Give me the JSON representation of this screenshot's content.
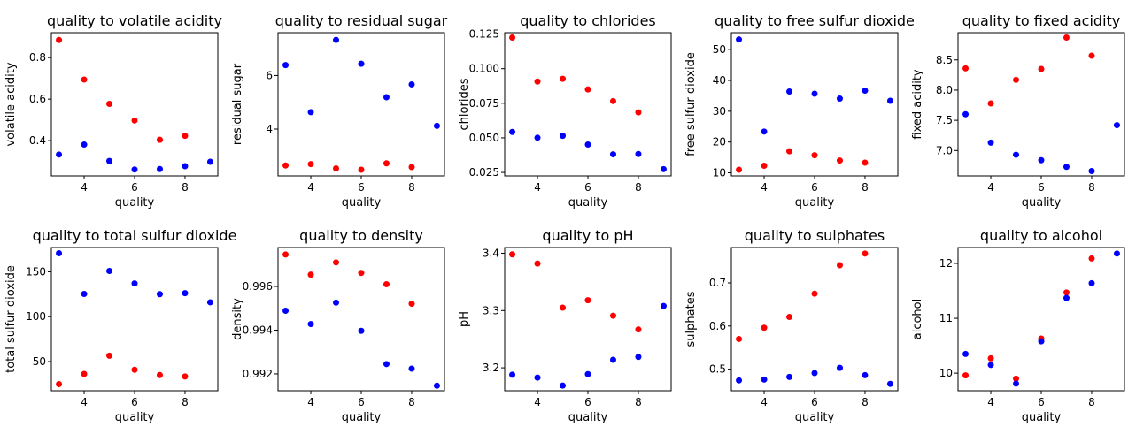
{
  "colors": {
    "red_series": "#ff0000",
    "blue_series": "#0000ff"
  },
  "chart_data": [
    {
      "type": "scatter",
      "title": "quality to volatile acidity",
      "xlabel": "quality",
      "ylabel": "volatile acidity",
      "xlim": [
        2.7,
        9.3
      ],
      "ylim": [
        0.23,
        0.92
      ],
      "xticks": [
        4,
        6,
        8
      ],
      "xtick_labels": [
        "4",
        "6",
        "8"
      ],
      "yticks": [
        0.4,
        0.6,
        0.8
      ],
      "ytick_labels": [
        "0.4",
        "0.6",
        "0.8"
      ],
      "series": [
        {
          "color": "#ff0000",
          "x": [
            3,
            4,
            5,
            6,
            7,
            8
          ],
          "y": [
            0.885,
            0.694,
            0.577,
            0.497,
            0.404,
            0.423
          ]
        },
        {
          "color": "#0000ff",
          "x": [
            3,
            4,
            5,
            6,
            7,
            8,
            9
          ],
          "y": [
            0.333,
            0.381,
            0.302,
            0.261,
            0.263,
            0.277,
            0.298
          ]
        }
      ]
    },
    {
      "type": "scatter",
      "title": "quality to residual sugar",
      "xlabel": "quality",
      "ylabel": "residual sugar",
      "xlim": [
        2.7,
        9.3
      ],
      "ylim": [
        2.25,
        7.6
      ],
      "xticks": [
        4,
        6,
        8
      ],
      "xtick_labels": [
        "4",
        "6",
        "8"
      ],
      "yticks": [
        4,
        6
      ],
      "ytick_labels": [
        "4",
        "6"
      ],
      "series": [
        {
          "color": "#ff0000",
          "x": [
            3,
            4,
            5,
            6,
            7,
            8
          ],
          "y": [
            2.64,
            2.69,
            2.53,
            2.48,
            2.72,
            2.58
          ]
        },
        {
          "color": "#0000ff",
          "x": [
            3,
            4,
            5,
            6,
            7,
            8,
            9
          ],
          "y": [
            6.39,
            4.63,
            7.33,
            6.44,
            5.19,
            5.67,
            4.12
          ]
        }
      ]
    },
    {
      "type": "scatter",
      "title": "quality to chlorides",
      "xlabel": "quality",
      "ylabel": "chlorides",
      "xlim": [
        2.7,
        9.3
      ],
      "ylim": [
        0.0225,
        0.126
      ],
      "xticks": [
        4,
        6,
        8
      ],
      "xtick_labels": [
        "4",
        "6",
        "8"
      ],
      "yticks": [
        0.025,
        0.05,
        0.075,
        0.1,
        0.125
      ],
      "ytick_labels": [
        "0.025",
        "0.050",
        "0.075",
        "0.100",
        "0.125"
      ],
      "series": [
        {
          "color": "#ff0000",
          "x": [
            3,
            4,
            5,
            6,
            7,
            8
          ],
          "y": [
            0.1225,
            0.0907,
            0.0927,
            0.085,
            0.0766,
            0.0684
          ]
        },
        {
          "color": "#0000ff",
          "x": [
            3,
            4,
            5,
            6,
            7,
            8,
            9
          ],
          "y": [
            0.0543,
            0.0501,
            0.0515,
            0.0452,
            0.0381,
            0.0383,
            0.0274
          ]
        }
      ]
    },
    {
      "type": "scatter",
      "title": "quality to free sulfur dioxide",
      "xlabel": "quality",
      "ylabel": "free sulfur dioxide",
      "xlim": [
        2.7,
        9.3
      ],
      "ylim": [
        9.0,
        55.5
      ],
      "xticks": [
        4,
        6,
        8
      ],
      "xtick_labels": [
        "4",
        "6",
        "8"
      ],
      "yticks": [
        10,
        20,
        30,
        40,
        50
      ],
      "ytick_labels": [
        "10",
        "20",
        "30",
        "40",
        "50"
      ],
      "series": [
        {
          "color": "#ff0000",
          "x": [
            3,
            4,
            5,
            6,
            7,
            8
          ],
          "y": [
            11.0,
            12.3,
            17.0,
            15.7,
            14.0,
            13.3
          ]
        },
        {
          "color": "#0000ff",
          "x": [
            3,
            4,
            5,
            6,
            7,
            8,
            9
          ],
          "y": [
            53.3,
            23.4,
            36.4,
            35.7,
            34.1,
            36.7,
            33.4
          ]
        }
      ]
    },
    {
      "type": "scatter",
      "title": "quality to fixed acidity",
      "xlabel": "quality",
      "ylabel": "fixed acidity",
      "xlim": [
        2.7,
        9.3
      ],
      "ylim": [
        6.58,
        8.95
      ],
      "xticks": [
        4,
        6,
        8
      ],
      "xtick_labels": [
        "4",
        "6",
        "8"
      ],
      "yticks": [
        7.0,
        7.5,
        8.0,
        8.5
      ],
      "ytick_labels": [
        "7.0",
        "7.5",
        "8.0",
        "8.5"
      ],
      "series": [
        {
          "color": "#ff0000",
          "x": [
            3,
            4,
            5,
            6,
            7,
            8
          ],
          "y": [
            8.36,
            7.78,
            8.17,
            8.35,
            8.87,
            8.57
          ]
        },
        {
          "color": "#0000ff",
          "x": [
            3,
            4,
            5,
            6,
            7,
            8,
            9
          ],
          "y": [
            7.6,
            7.13,
            6.93,
            6.84,
            6.73,
            6.66,
            7.42
          ]
        }
      ]
    },
    {
      "type": "scatter",
      "title": "quality to total sulfur dioxide",
      "xlabel": "quality",
      "ylabel": "total sulfur dioxide",
      "xlim": [
        2.7,
        9.3
      ],
      "ylim": [
        17.5,
        177
      ],
      "xticks": [
        4,
        6,
        8
      ],
      "xtick_labels": [
        "4",
        "6",
        "8"
      ],
      "yticks": [
        50,
        100,
        150
      ],
      "ytick_labels": [
        "50",
        "100",
        "150"
      ],
      "series": [
        {
          "color": "#ff0000",
          "x": [
            3,
            4,
            5,
            6,
            7,
            8
          ],
          "y": [
            24.9,
            36.2,
            56.5,
            40.9,
            35.0,
            33.4
          ]
        },
        {
          "color": "#0000ff",
          "x": [
            3,
            4,
            5,
            6,
            7,
            8,
            9
          ],
          "y": [
            170.6,
            125.3,
            150.9,
            137.0,
            125.1,
            126.2,
            116.0
          ]
        }
      ]
    },
    {
      "type": "scatter",
      "title": "quality to density",
      "xlabel": "quality",
      "ylabel": "density",
      "xlim": [
        2.7,
        9.3
      ],
      "ylim": [
        0.99123,
        0.99778
      ],
      "xticks": [
        4,
        6,
        8
      ],
      "xtick_labels": [
        "4",
        "6",
        "8"
      ],
      "yticks": [
        0.992,
        0.994,
        0.996
      ],
      "ytick_labels": [
        "0.992",
        "0.994",
        "0.996"
      ],
      "series": [
        {
          "color": "#ff0000",
          "x": [
            3,
            4,
            5,
            6,
            7,
            8
          ],
          "y": [
            0.99746,
            0.99654,
            0.9971,
            0.99662,
            0.9961,
            0.99521
          ]
        },
        {
          "color": "#0000ff",
          "x": [
            3,
            4,
            5,
            6,
            7,
            8,
            9
          ],
          "y": [
            0.99489,
            0.99428,
            0.99526,
            0.99397,
            0.99245,
            0.99224,
            0.99146
          ]
        }
      ]
    },
    {
      "type": "scatter",
      "title": "quality to pH",
      "xlabel": "quality",
      "ylabel": "pH",
      "xlim": [
        2.7,
        9.3
      ],
      "ylim": [
        3.16,
        3.41
      ],
      "xticks": [
        4,
        6,
        8
      ],
      "xtick_labels": [
        "4",
        "6",
        "8"
      ],
      "yticks": [
        3.2,
        3.3,
        3.4
      ],
      "ytick_labels": [
        "3.2",
        "3.3",
        "3.4"
      ],
      "series": [
        {
          "color": "#ff0000",
          "x": [
            3,
            4,
            5,
            6,
            7,
            8
          ],
          "y": [
            3.398,
            3.382,
            3.305,
            3.318,
            3.291,
            3.267
          ]
        },
        {
          "color": "#0000ff",
          "x": [
            3,
            4,
            5,
            6,
            7,
            8,
            9
          ],
          "y": [
            3.188,
            3.183,
            3.169,
            3.189,
            3.214,
            3.219,
            3.308
          ]
        }
      ]
    },
    {
      "type": "scatter",
      "title": "quality to sulphates",
      "xlabel": "quality",
      "ylabel": "sulphates",
      "xlim": [
        2.7,
        9.3
      ],
      "ylim": [
        0.45,
        0.782
      ],
      "xticks": [
        4,
        6,
        8
      ],
      "xtick_labels": [
        "4",
        "6",
        "8"
      ],
      "yticks": [
        0.5,
        0.6,
        0.7
      ],
      "ytick_labels": [
        "0.5",
        "0.6",
        "0.7"
      ],
      "series": [
        {
          "color": "#ff0000",
          "x": [
            3,
            4,
            5,
            6,
            7,
            8
          ],
          "y": [
            0.57,
            0.596,
            0.621,
            0.675,
            0.741,
            0.768
          ]
        },
        {
          "color": "#0000ff",
          "x": [
            3,
            4,
            5,
            6,
            7,
            8,
            9
          ],
          "y": [
            0.474,
            0.476,
            0.482,
            0.491,
            0.503,
            0.486,
            0.466
          ]
        }
      ]
    },
    {
      "type": "scatter",
      "title": "quality to alcohol",
      "xlabel": "quality",
      "ylabel": "alcohol",
      "xlim": [
        2.7,
        9.3
      ],
      "ylim": [
        9.68,
        12.29
      ],
      "xticks": [
        4,
        6,
        8
      ],
      "xtick_labels": [
        "4",
        "6",
        "8"
      ],
      "yticks": [
        10,
        11,
        12
      ],
      "ytick_labels": [
        "10",
        "11",
        "12"
      ],
      "series": [
        {
          "color": "#ff0000",
          "x": [
            3,
            4,
            5,
            6,
            7,
            8
          ],
          "y": [
            9.96,
            10.27,
            9.9,
            10.63,
            11.47,
            12.09
          ]
        },
        {
          "color": "#0000ff",
          "x": [
            3,
            4,
            5,
            6,
            7,
            8,
            9
          ],
          "y": [
            10.35,
            10.15,
            9.81,
            10.58,
            11.37,
            11.64,
            12.18
          ]
        }
      ]
    }
  ]
}
